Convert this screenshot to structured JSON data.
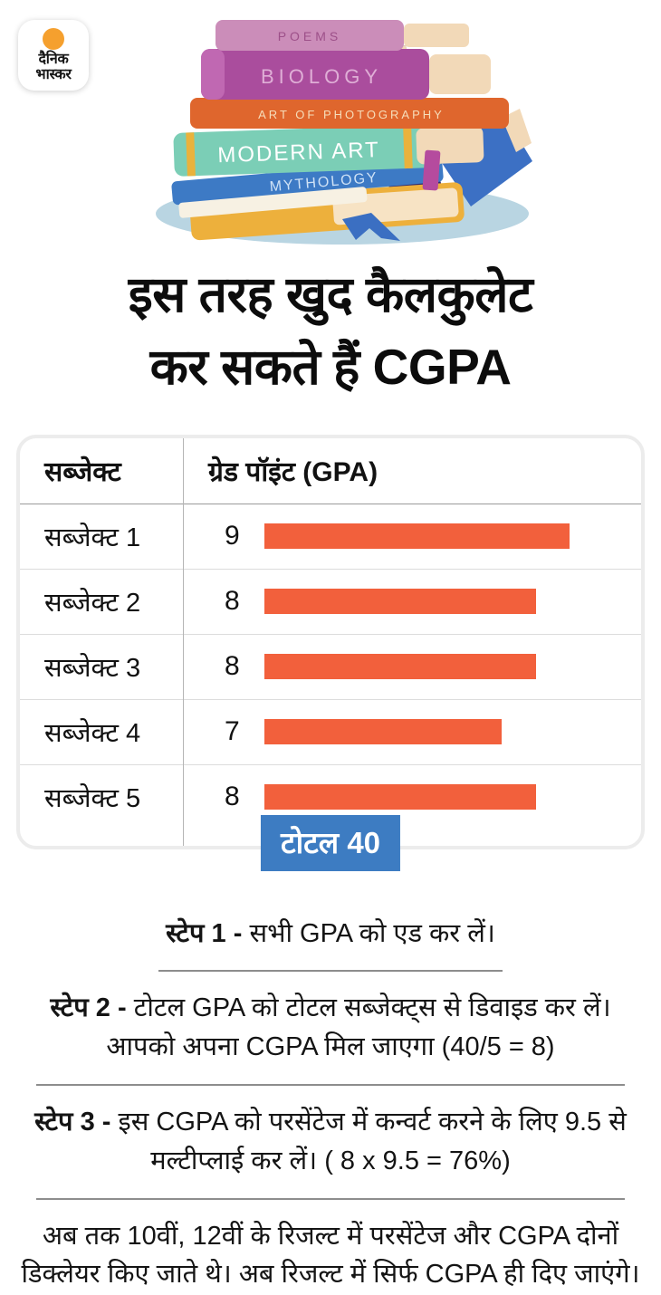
{
  "colors": {
    "bar": "#f2603c",
    "badge_bg": "#3d7cc2",
    "logo_dot": "#f5a02e",
    "shadow": "#b9d5e2"
  },
  "logo": {
    "line1": "दैनिक",
    "line2": "भास्कर"
  },
  "illustration": {
    "books": [
      "POEMS",
      "BIOLOGY",
      "ART OF PHOTOGRAPHY",
      "MODERN ART",
      "MYTHOLOGY"
    ]
  },
  "heading": {
    "line1": "इस तरह खुद कैलकुलेट",
    "line2": "कर सकते हैं CGPA"
  },
  "table": {
    "col1_header": "सब्जेक्ट",
    "col2_header": "ग्रेड पॉइंट (GPA)",
    "rows": [
      {
        "label": "सब्जेक्ट 1",
        "gpa": 9
      },
      {
        "label": "सब्जेक्ट 2",
        "gpa": 8
      },
      {
        "label": "सब्जेक्ट 3",
        "gpa": 8
      },
      {
        "label": "सब्जेक्ट 4",
        "gpa": 7
      },
      {
        "label": "सब्जेक्ट 5",
        "gpa": 8
      }
    ],
    "total_label": "टोटल 40"
  },
  "steps": [
    {
      "label": "स्टेप 1 -",
      "lines": [
        "सभी GPA को एड कर लें।"
      ]
    },
    {
      "label": "स्टेप 2 -",
      "lines": [
        "टोटल GPA को टोटल सब्जेक्ट्स से डिवाइड कर लें।",
        "आपको अपना CGPA मिल जाएगा (40/5 = 8)"
      ]
    },
    {
      "label": "स्टेप 3 -",
      "lines": [
        "इस CGPA को परसेंटेज में कन्वर्ट करने के लिए 9.5 से",
        "मल्टीप्लाई कर लें। ( 8 x 9.5 = 76%)"
      ]
    }
  ],
  "footer": {
    "line1": "अब तक 10वीं, 12वीं के रिजल्ट में परसेंटेज और CGPA दोनों",
    "line2": "डिक्लेयर किए जाते थे। अब रिजल्ट में सिर्फ CGPA ही दिए जाएंगे।"
  },
  "chart_data": {
    "type": "bar",
    "orientation": "horizontal",
    "title": "इस तरह खुद कैलकुलेट कर सकते हैं CGPA",
    "categories": [
      "सब्जेक्ट 1",
      "सब्जेक्ट 2",
      "सब्जेक्ट 3",
      "सब्जेक्ट 4",
      "सब्जेक्ट 5"
    ],
    "values": [
      9,
      8,
      8,
      7,
      8
    ],
    "xlabel": "ग्रेड पॉइंट (GPA)",
    "ylabel": "सब्जेक्ट",
    "xlim": [
      0,
      9
    ],
    "total": 40,
    "total_label": "टोटल 40",
    "bar_color": "#f2603c",
    "data_labels": true,
    "legend": false,
    "grid": false
  }
}
